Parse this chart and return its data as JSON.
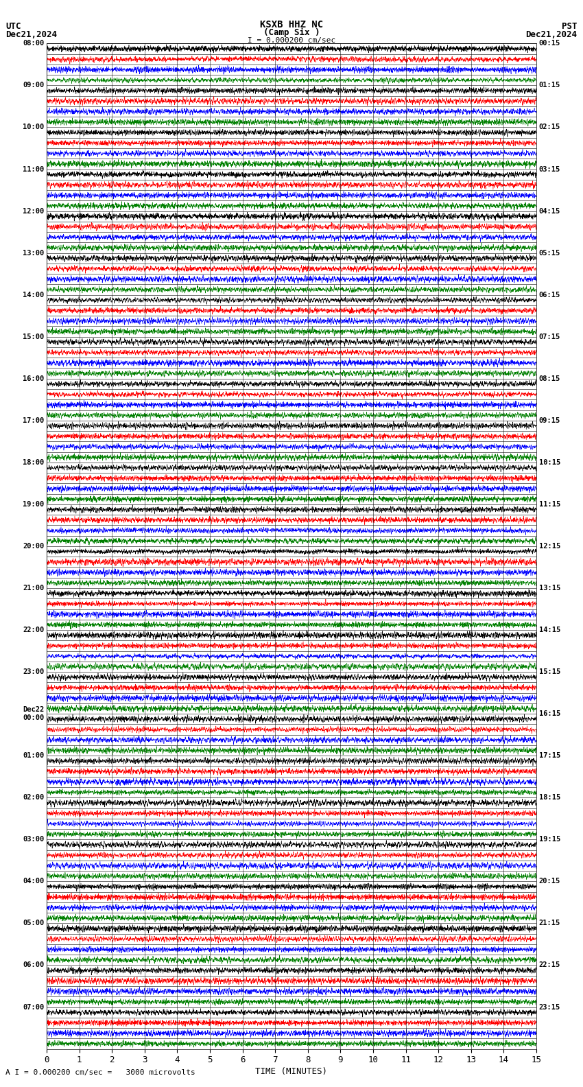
{
  "title_line1": "KSXB HHZ NC",
  "title_line2": "(Camp Six )",
  "scale_label": "I = 0.000200 cm/sec",
  "utc_label": "UTC",
  "utc_date": "Dec21,2024",
  "pst_label": "PST",
  "pst_date": "Dec21,2024",
  "bottom_label": "A I = 0.000200 cm/sec =   3000 microvolts",
  "xlabel": "TIME (MINUTES)",
  "left_times": [
    "08:00",
    "09:00",
    "10:00",
    "11:00",
    "12:00",
    "13:00",
    "14:00",
    "15:00",
    "16:00",
    "17:00",
    "18:00",
    "19:00",
    "20:00",
    "21:00",
    "22:00",
    "23:00",
    "Dec22\n00:00",
    "01:00",
    "02:00",
    "03:00",
    "04:00",
    "05:00",
    "06:00",
    "07:00"
  ],
  "right_times": [
    "00:15",
    "01:15",
    "02:15",
    "03:15",
    "04:15",
    "05:15",
    "06:15",
    "07:15",
    "08:15",
    "09:15",
    "10:15",
    "11:15",
    "12:15",
    "13:15",
    "14:15",
    "15:15",
    "16:15",
    "17:15",
    "18:15",
    "19:15",
    "20:15",
    "21:15",
    "22:15",
    "23:15"
  ],
  "n_rows": 48,
  "n_cols": 3000,
  "x_min": 0,
  "x_max": 15,
  "x_ticks": [
    0,
    1,
    2,
    3,
    4,
    5,
    6,
    7,
    8,
    9,
    10,
    11,
    12,
    13,
    14,
    15
  ],
  "trace_colors": [
    "black",
    "red",
    "blue",
    "green"
  ],
  "bg_color": "white",
  "font_size": 9,
  "title_font_size": 10,
  "linewidth": 0.4
}
